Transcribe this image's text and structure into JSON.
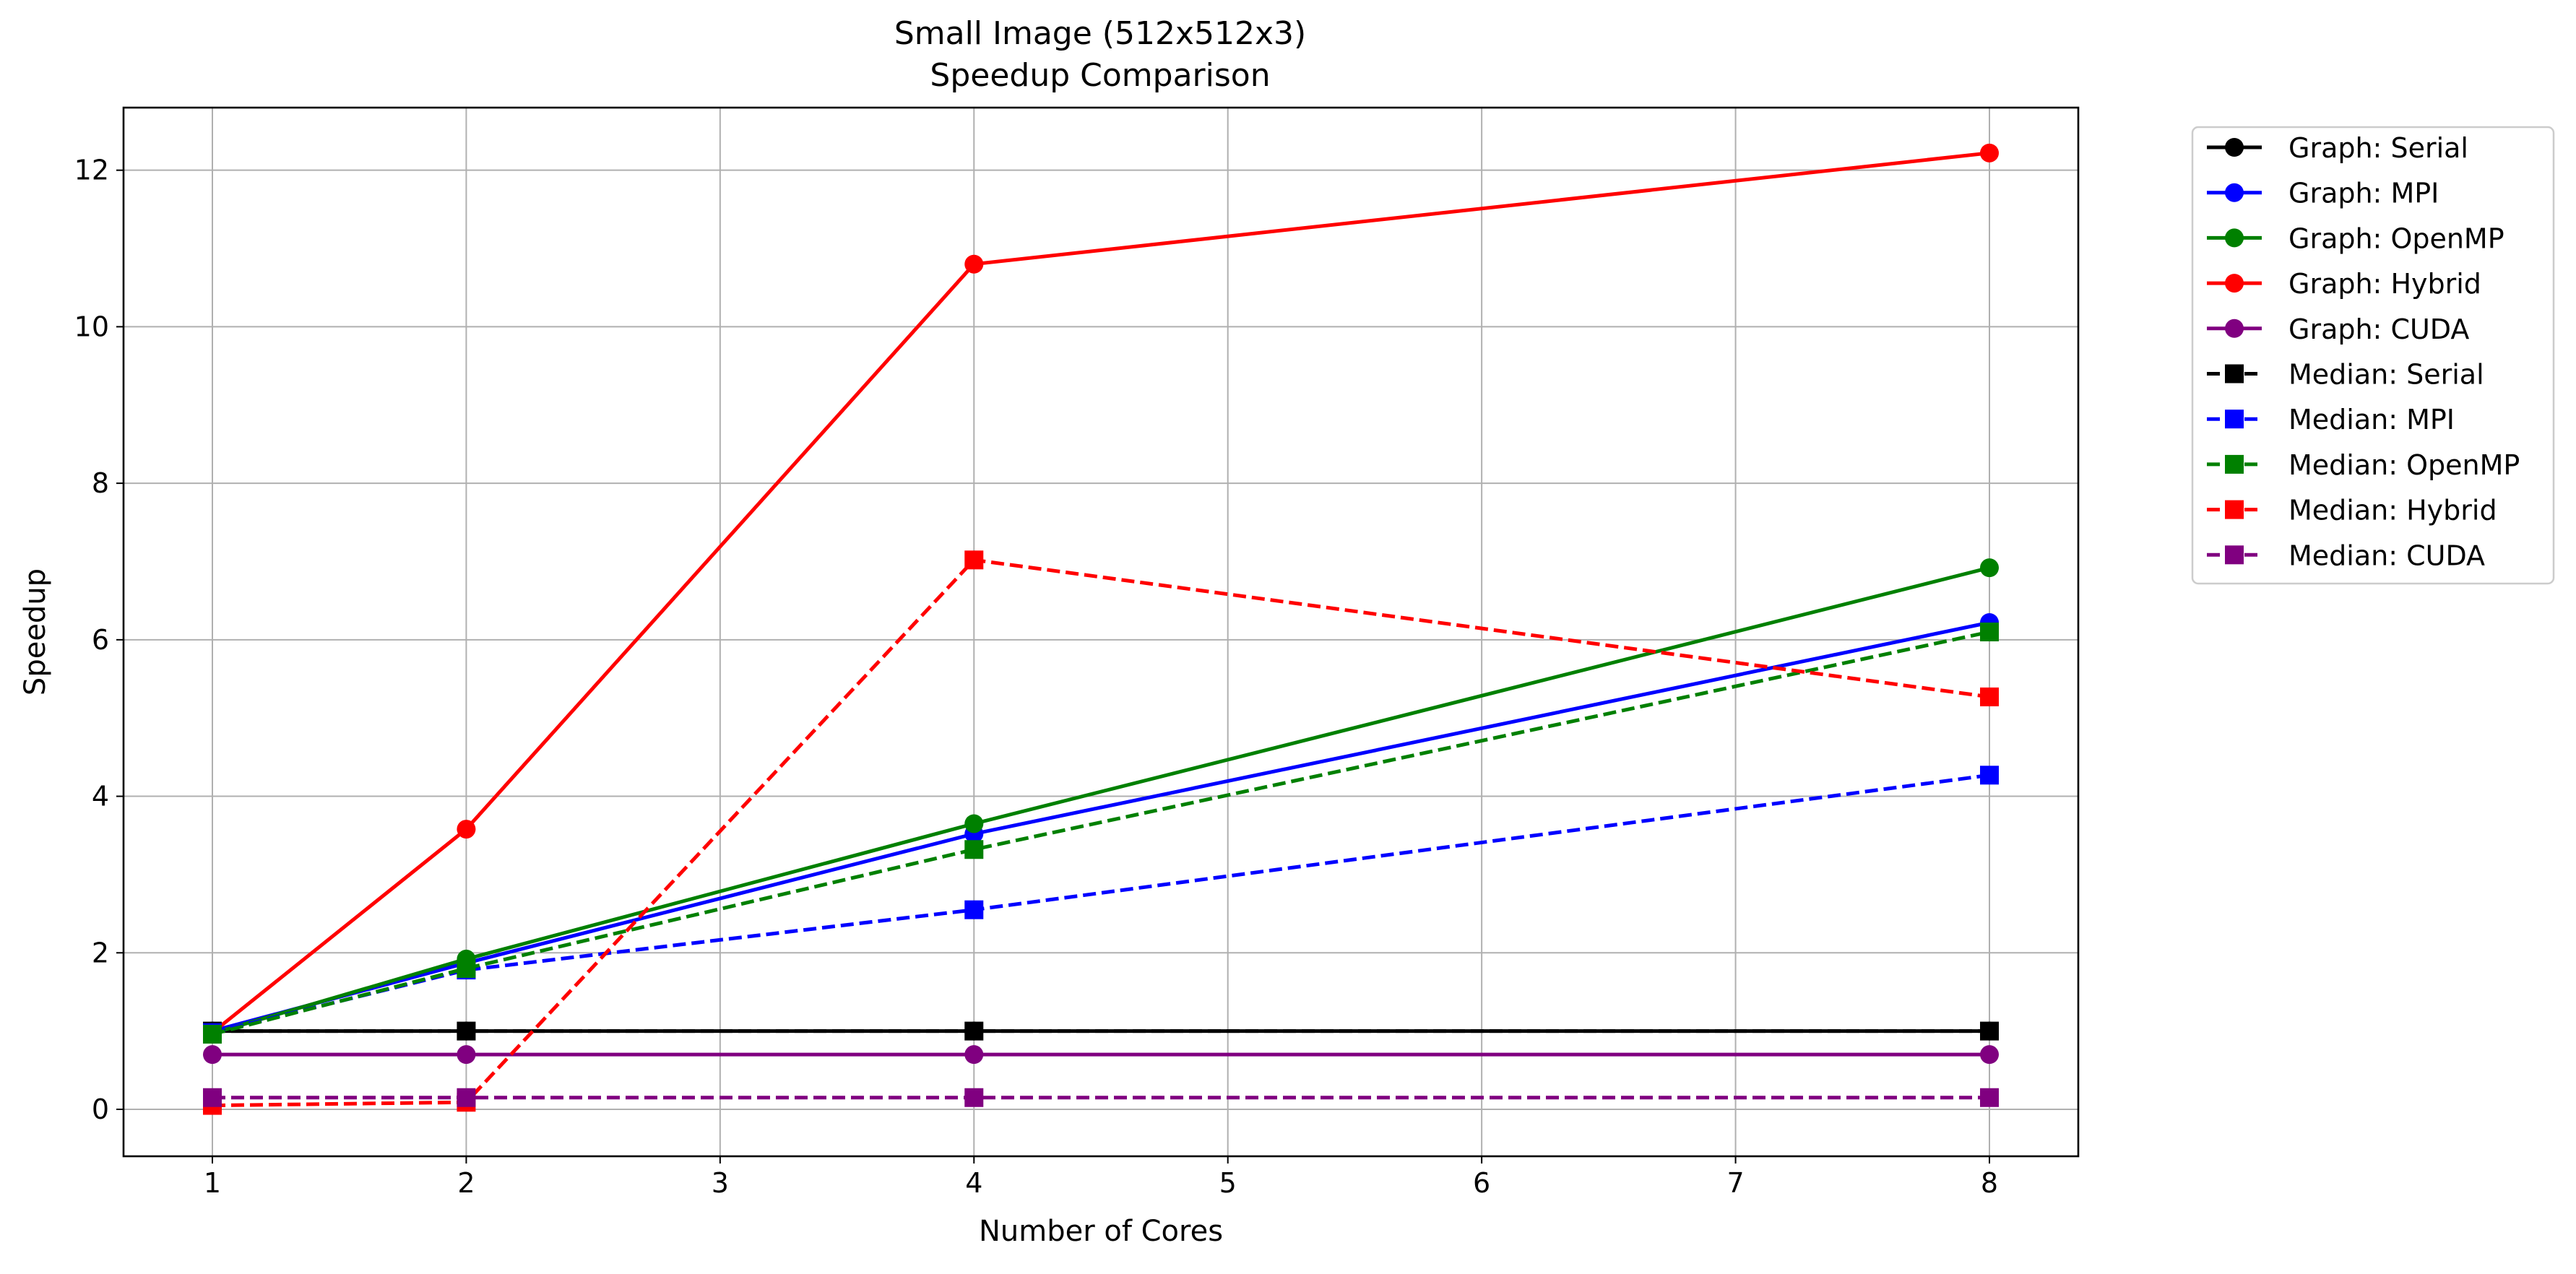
{
  "chart_data": {
    "type": "line",
    "title": "Small Image (512x512x3)",
    "subtitle": "Speedup Comparison",
    "xlabel": "Number of Cores",
    "ylabel": "Speedup",
    "xlim": [
      0.65,
      8.35
    ],
    "ylim": [
      -0.6,
      12.8
    ],
    "x_ticks": [
      1,
      2,
      3,
      4,
      5,
      6,
      7,
      8
    ],
    "y_ticks": [
      0,
      2,
      4,
      6,
      8,
      10,
      12
    ],
    "grid": true,
    "legend_position": "outside-right",
    "x": [
      1,
      2,
      4,
      8
    ],
    "series": [
      {
        "name": "Graph: Serial",
        "color": "#000000",
        "marker": "circle",
        "dash": "solid",
        "values": [
          1.0,
          1.0,
          1.0,
          1.0
        ]
      },
      {
        "name": "Graph: MPI",
        "color": "#0000ff",
        "marker": "circle",
        "dash": "solid",
        "values": [
          1.0,
          1.87,
          3.52,
          6.22
        ]
      },
      {
        "name": "Graph: OpenMP",
        "color": "#008000",
        "marker": "circle",
        "dash": "solid",
        "values": [
          0.97,
          1.92,
          3.65,
          6.92
        ]
      },
      {
        "name": "Graph: Hybrid",
        "color": "#ff0000",
        "marker": "circle",
        "dash": "solid",
        "values": [
          0.98,
          3.58,
          10.8,
          12.22
        ]
      },
      {
        "name": "Graph: CUDA",
        "color": "#800080",
        "marker": "circle",
        "dash": "solid",
        "values": [
          0.7,
          0.7,
          0.7,
          0.7
        ]
      },
      {
        "name": "Median: Serial",
        "color": "#000000",
        "marker": "square",
        "dash": "dashed",
        "values": [
          1.0,
          1.0,
          1.0,
          1.0
        ]
      },
      {
        "name": "Median: MPI",
        "color": "#0000ff",
        "marker": "square",
        "dash": "dashed",
        "values": [
          0.98,
          1.78,
          2.55,
          4.27
        ]
      },
      {
        "name": "Median: OpenMP",
        "color": "#008000",
        "marker": "square",
        "dash": "dashed",
        "values": [
          0.96,
          1.8,
          3.32,
          6.1
        ]
      },
      {
        "name": "Median: Hybrid",
        "color": "#ff0000",
        "marker": "square",
        "dash": "dashed",
        "values": [
          0.05,
          0.09,
          7.02,
          5.27
        ]
      },
      {
        "name": "Median: CUDA",
        "color": "#800080",
        "marker": "square",
        "dash": "dashed",
        "values": [
          0.15,
          0.15,
          0.15,
          0.15
        ]
      }
    ]
  }
}
